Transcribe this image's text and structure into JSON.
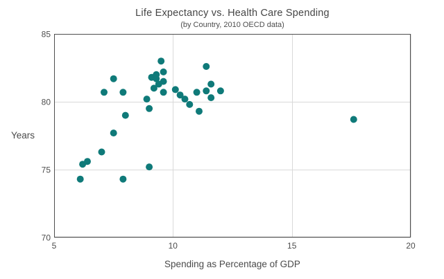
{
  "chart_data": {
    "type": "scatter",
    "title": "Life Expectancy vs. Health Care Spending",
    "subtitle": "(by Country, 2010 OECD data)",
    "xlabel": "Spending as Percentage of GDP",
    "ylabel": "Years",
    "xlim": [
      5,
      20
    ],
    "ylim": [
      70,
      85
    ],
    "xticks": [
      5,
      10,
      15,
      20
    ],
    "yticks": [
      70,
      75,
      80,
      85
    ],
    "grid": true,
    "legend": false,
    "point_color": "#0f7a79",
    "gridline_color": "#d9d9d9",
    "border_color": "#4d4d4d",
    "points": [
      [
        6.1,
        74.3
      ],
      [
        6.2,
        75.4
      ],
      [
        6.4,
        75.6
      ],
      [
        7.0,
        76.3
      ],
      [
        7.1,
        80.7
      ],
      [
        7.5,
        77.7
      ],
      [
        7.5,
        81.7
      ],
      [
        7.9,
        74.3
      ],
      [
        7.9,
        80.7
      ],
      [
        8.0,
        79.0
      ],
      [
        8.9,
        80.2
      ],
      [
        9.0,
        75.2
      ],
      [
        9.0,
        79.5
      ],
      [
        9.1,
        81.8
      ],
      [
        9.2,
        81.0
      ],
      [
        9.3,
        81.7
      ],
      [
        9.3,
        82.0
      ],
      [
        9.4,
        81.3
      ],
      [
        9.5,
        83.0
      ],
      [
        9.6,
        80.7
      ],
      [
        9.6,
        81.5
      ],
      [
        9.6,
        82.2
      ],
      [
        10.1,
        80.9
      ],
      [
        10.3,
        80.5
      ],
      [
        10.5,
        80.2
      ],
      [
        10.7,
        79.8
      ],
      [
        11.0,
        80.7
      ],
      [
        11.1,
        79.3
      ],
      [
        11.4,
        80.8
      ],
      [
        11.4,
        82.6
      ],
      [
        11.6,
        80.3
      ],
      [
        11.6,
        81.3
      ],
      [
        12.0,
        80.8
      ],
      [
        17.6,
        78.7
      ]
    ]
  }
}
